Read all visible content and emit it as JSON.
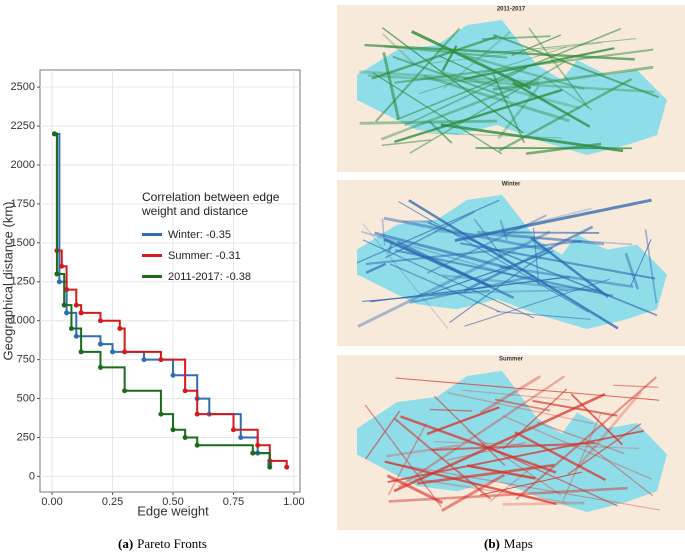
{
  "chart_data": {
    "type": "line",
    "x_label": "Edge weight",
    "y_label": "Geographical distance (km)",
    "legend_title": "Correlation between edge weight and distance",
    "xlim": [
      -0.05,
      1.025
    ],
    "ylim": [
      -100,
      2610
    ],
    "xticks": [
      {
        "value": 0,
        "label": "0.00"
      },
      {
        "value": 0.25,
        "label": "0.25"
      },
      {
        "value": 0.5,
        "label": "0.50"
      },
      {
        "value": 0.75,
        "label": "0.75"
      },
      {
        "value": 1,
        "label": "1.00"
      }
    ],
    "yticks": [
      0,
      250,
      500,
      750,
      1000,
      1250,
      1500,
      1750,
      2000,
      2250,
      2500
    ],
    "grid": true,
    "series": [
      {
        "name": "Winter: -0.35",
        "color": "#2f6db5",
        "x": [
          0.01,
          0.03,
          0.06,
          0.1,
          0.2,
          0.25,
          0.38,
          0.5,
          0.6,
          0.65,
          0.78,
          0.85,
          0.9
        ],
        "values": [
          2200,
          1250,
          1050,
          900,
          850,
          800,
          750,
          650,
          500,
          400,
          250,
          150,
          80
        ]
      },
      {
        "name": "Summer: -0.31",
        "color": "#d7191c",
        "x": [
          0.01,
          0.02,
          0.04,
          0.06,
          0.1,
          0.12,
          0.2,
          0.28,
          0.3,
          0.45,
          0.55,
          0.6,
          0.75,
          0.85,
          0.9,
          0.97
        ],
        "values": [
          2200,
          1450,
          1350,
          1200,
          1100,
          1050,
          1000,
          950,
          800,
          750,
          550,
          400,
          300,
          200,
          100,
          60
        ]
      },
      {
        "name": "2011-2017: -0.38",
        "color": "#1a6b1a",
        "x": [
          0.01,
          0.02,
          0.05,
          0.08,
          0.12,
          0.2,
          0.3,
          0.45,
          0.5,
          0.55,
          0.6,
          0.83,
          0.9
        ],
        "values": [
          2200,
          1300,
          1100,
          950,
          800,
          700,
          550,
          400,
          300,
          250,
          200,
          150,
          60
        ]
      }
    ]
  },
  "maps": {
    "panels": [
      {
        "title": "2011-2017",
        "color": "#2e8b3e"
      },
      {
        "title": "Winter",
        "color": "#2c66b0"
      },
      {
        "title": "Summer",
        "color": "#d8312a"
      }
    ]
  },
  "captions": [
    {
      "label": "(a)",
      "text": "Pareto Fronts"
    },
    {
      "label": "(b)",
      "text": "Maps"
    }
  ]
}
